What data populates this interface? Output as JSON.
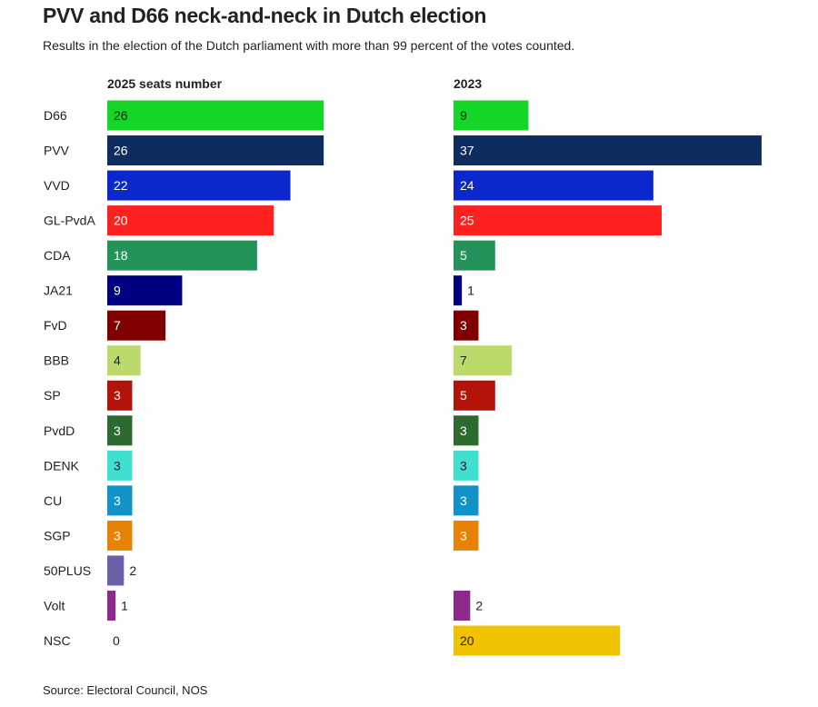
{
  "title": "PVV and D66 neck-and-neck in Dutch election",
  "subtitle": "Results in the election of the Dutch parliament with more than 99 percent of the votes counted.",
  "source": "Source: Electoral Council, NOS",
  "chart_data": {
    "type": "bar",
    "orientation": "horizontal",
    "categories": [
      "D66",
      "PVV",
      "VVD",
      "GL-PvdA",
      "CDA",
      "JA21",
      "FvD",
      "BBB",
      "SP",
      "PvdD",
      "DENK",
      "CU",
      "SGP",
      "50PLUS",
      "Volt",
      "NSC"
    ],
    "series": [
      {
        "name": "2025 seats number",
        "values": [
          26,
          26,
          22,
          20,
          18,
          9,
          7,
          4,
          3,
          3,
          3,
          3,
          3,
          2,
          1,
          0
        ]
      },
      {
        "name": "2023",
        "values": [
          9,
          37,
          24,
          25,
          5,
          1,
          3,
          7,
          5,
          3,
          3,
          3,
          3,
          null,
          2,
          20
        ]
      }
    ],
    "colors": [
      "#14d626",
      "#0e2c5e",
      "#0a28cc",
      "#ff2020",
      "#23935a",
      "#000080",
      "#800000",
      "#bcd96c",
      "#b31308",
      "#2d6a2f",
      "#40e0d0",
      "#1193c9",
      "#e88207",
      "#6a62a8",
      "#8b2a8b",
      "#f0c200"
    ],
    "dark_label_parties": [
      "D66",
      "BBB",
      "DENK",
      "NSC"
    ],
    "xlim": [
      0,
      37
    ],
    "grid": false
  }
}
